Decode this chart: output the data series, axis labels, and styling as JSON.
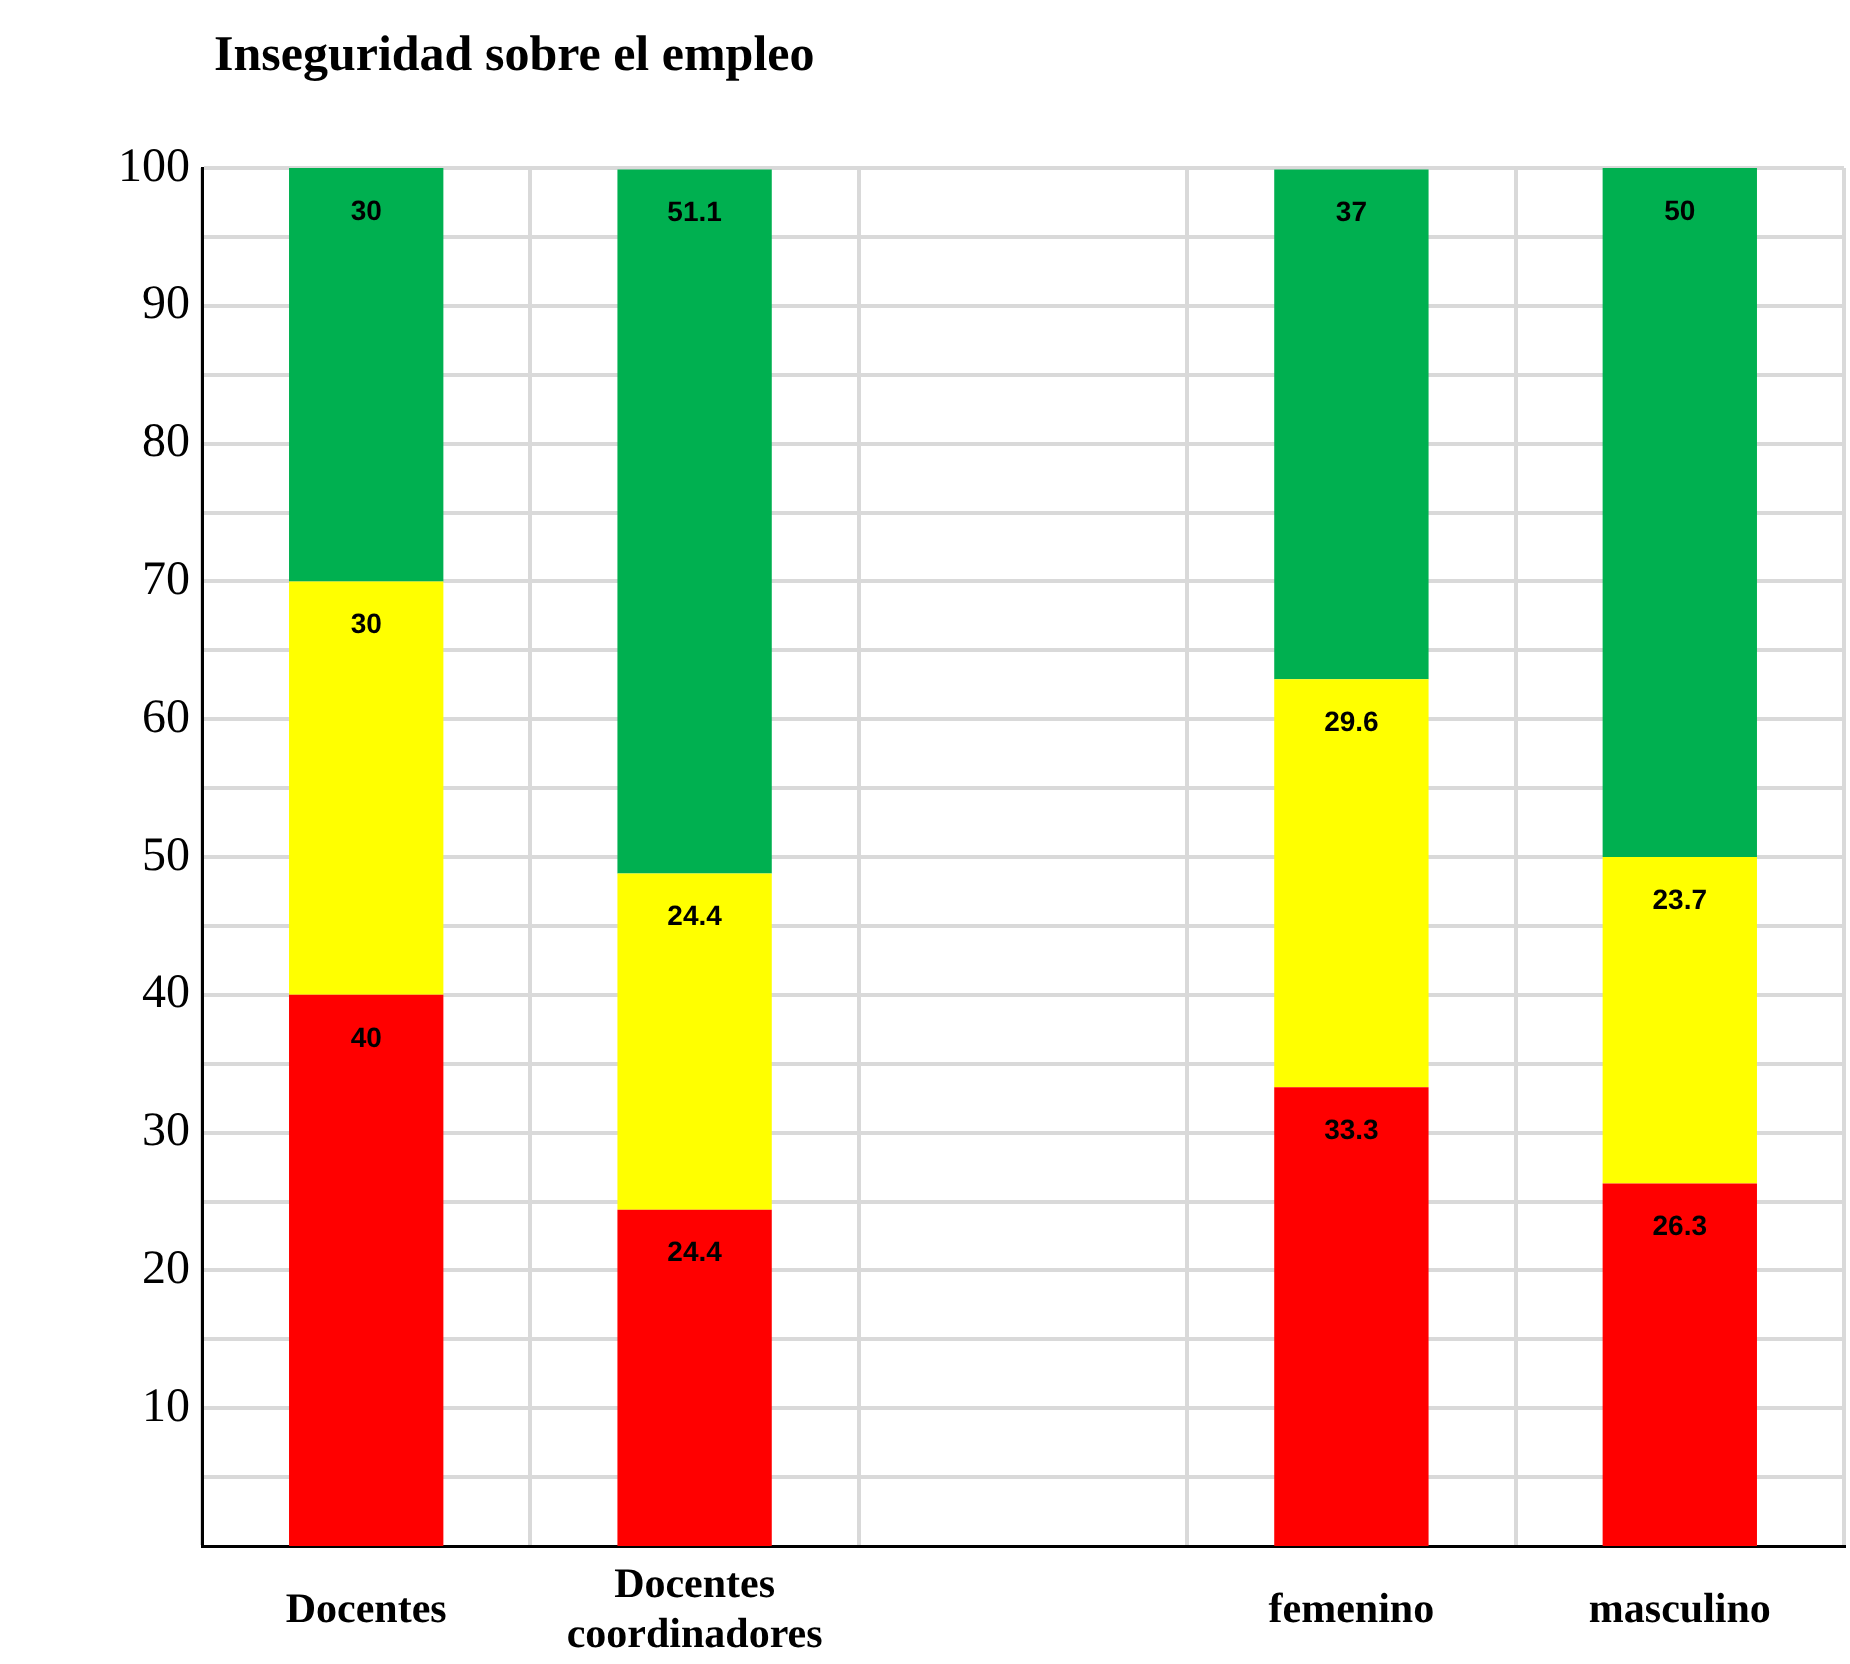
{
  "chart_data": {
    "type": "bar",
    "title": "Inseguridad sobre el empleo",
    "categories": [
      "Docentes",
      "Docentes coordinadores",
      null,
      "femenino",
      "masculino"
    ],
    "series": [
      {
        "color": "#ff0000",
        "values": [
          40,
          24.4,
          null,
          33.3,
          26.3
        ]
      },
      {
        "color": "#ffff00",
        "values": [
          30,
          24.4,
          null,
          29.6,
          23.7
        ]
      },
      {
        "color": "#00b050",
        "values": [
          30,
          51.1,
          null,
          37,
          50
        ]
      }
    ],
    "stacked": true,
    "data_labels": true,
    "grid": true,
    "legend": false,
    "ylim": [
      0,
      100
    ],
    "yticks": [
      {
        "value": 5,
        "label": null
      },
      10,
      {
        "value": 15,
        "label": null
      },
      20,
      {
        "value": 25,
        "label": null
      },
      30,
      {
        "value": 35,
        "label": null
      },
      40,
      {
        "value": 45,
        "label": null
      },
      50,
      {
        "value": 55,
        "label": null
      },
      60,
      {
        "value": 65,
        "label": null
      },
      70,
      {
        "value": 75,
        "label": null
      },
      80,
      {
        "value": 85,
        "label": null
      },
      90,
      {
        "value": 95,
        "label": null
      },
      100
    ]
  }
}
